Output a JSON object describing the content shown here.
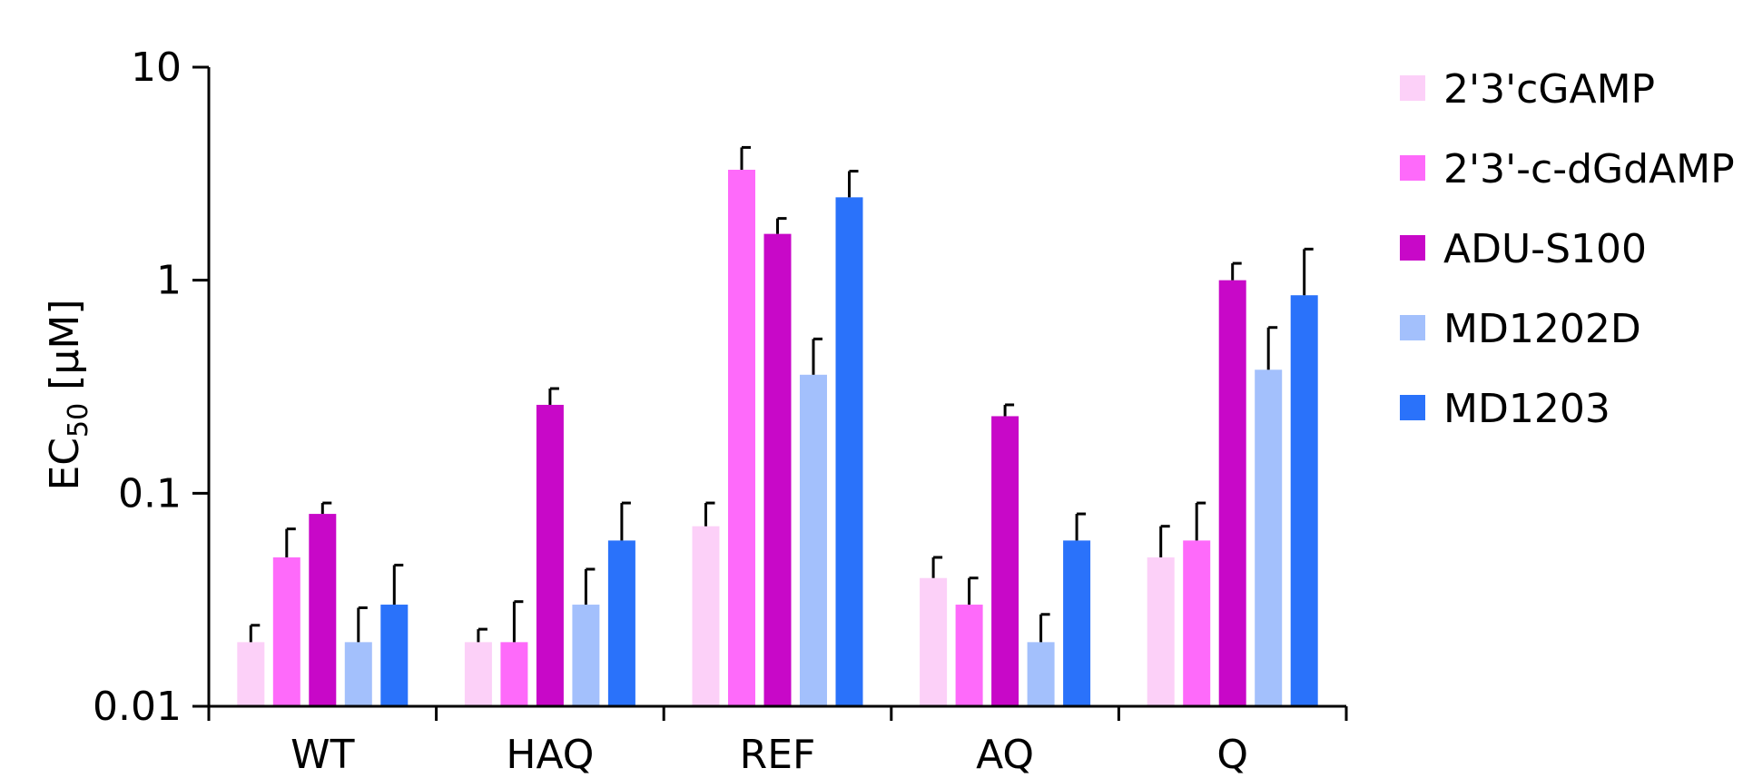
{
  "chart_data": {
    "type": "bar",
    "yscale": "log",
    "ylim": [
      0.01,
      10
    ],
    "yticks": [
      {
        "value": 0.01,
        "label": "0.01"
      },
      {
        "value": 0.1,
        "label": "0.1"
      },
      {
        "value": 1,
        "label": "1"
      },
      {
        "value": 10,
        "label": "10"
      }
    ],
    "ylabel": {
      "main": "EC",
      "sub": "50",
      "unit": " [µM]"
    },
    "xlabel": "",
    "title": "",
    "grid": false,
    "legend_position": "right",
    "categories": [
      "WT",
      "HAQ",
      "REF",
      "AQ",
      "Q"
    ],
    "series": [
      {
        "name": "2'3'cGAMP",
        "color": "#FCD0F8",
        "values": [
          0.02,
          0.02,
          0.07,
          0.04,
          0.05
        ],
        "errors_upper": [
          0.024,
          0.023,
          0.09,
          0.05,
          0.07
        ]
      },
      {
        "name": "2'3'-c-dGdAMP",
        "color": "#FE6AFA",
        "values": [
          0.05,
          0.02,
          3.3,
          0.03,
          0.06
        ],
        "errors_upper": [
          0.068,
          0.031,
          4.2,
          0.04,
          0.09
        ]
      },
      {
        "name": "ADU-S100",
        "color": "#C808C8",
        "values": [
          0.08,
          0.26,
          1.65,
          0.23,
          1.0
        ],
        "errors_upper": [
          0.09,
          0.31,
          1.95,
          0.26,
          1.2
        ]
      },
      {
        "name": "MD1202D",
        "color": "#A3C0FC",
        "values": [
          0.02,
          0.03,
          0.36,
          0.02,
          0.38
        ],
        "errors_upper": [
          0.029,
          0.044,
          0.53,
          0.027,
          0.6
        ]
      },
      {
        "name": "MD1203",
        "color": "#2A72FA",
        "values": [
          0.03,
          0.06,
          2.45,
          0.06,
          0.85
        ],
        "errors_upper": [
          0.046,
          0.09,
          3.25,
          0.08,
          1.4
        ]
      }
    ]
  }
}
